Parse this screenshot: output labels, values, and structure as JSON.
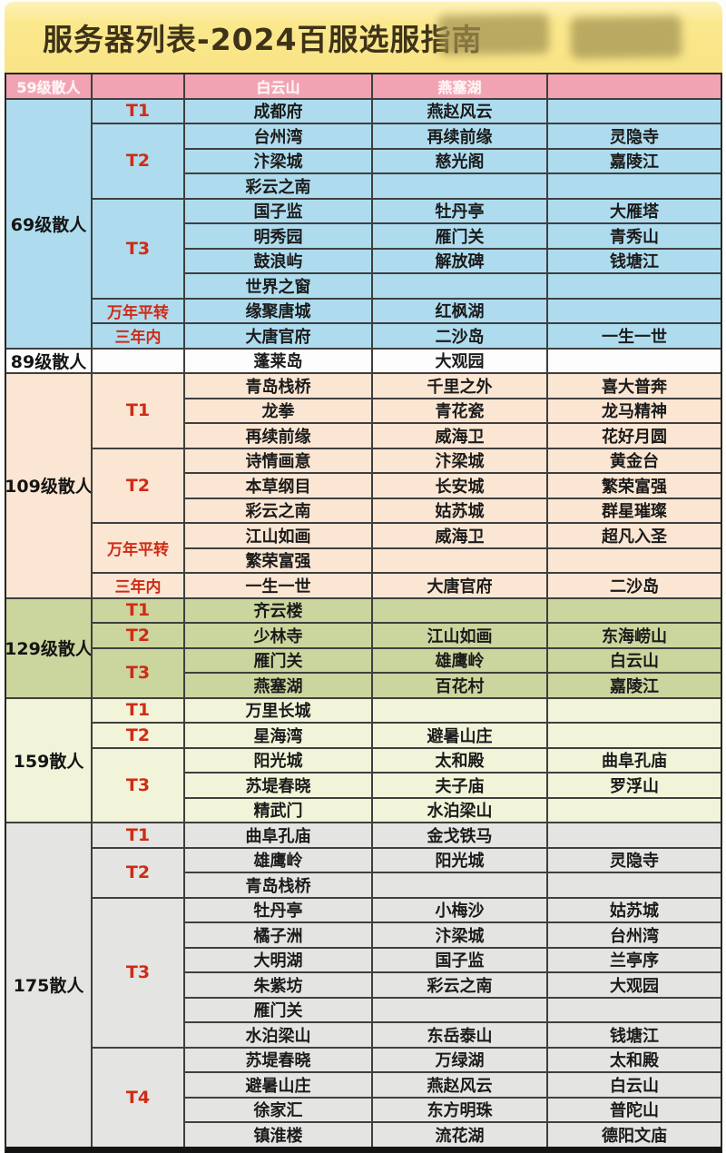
{
  "banner": {
    "title": "服务器列表-2024百服选服指南",
    "redacted_watermarks": 2,
    "bg_color": "#f9e689",
    "title_color": "#3e3318"
  },
  "palette": {
    "header_pink": "#f1a3b3",
    "grid_line": "#3f3f3f",
    "tier_red": "#cf2b16",
    "section_69": "#aedcee",
    "section_89": "#fdfdfd",
    "section_109": "#fae6d2",
    "section_129": "#cbd59e",
    "section_159": "#f1f4d9",
    "section_175": "#e4e4e2"
  },
  "table": {
    "header": {
      "cols": [
        "59级散人",
        "",
        "白云山",
        "燕塞湖",
        ""
      ]
    },
    "sections": [
      {
        "level": "69级散人",
        "bg": "#aedcee",
        "groups": [
          {
            "tier": "T1",
            "rows": [
              [
                "成都府",
                "燕赵风云",
                ""
              ]
            ]
          },
          {
            "tier": "T2",
            "rows": [
              [
                "台州湾",
                "再续前缘",
                "灵隐寺"
              ],
              [
                "汴梁城",
                "慈光阁",
                "嘉陵江"
              ],
              [
                "彩云之南",
                "",
                ""
              ]
            ]
          },
          {
            "tier": "T3",
            "rows": [
              [
                "国子监",
                "牡丹亭",
                "大雁塔"
              ],
              [
                "明秀园",
                "雁门关",
                "青秀山"
              ],
              [
                "鼓浪屿",
                "解放碑",
                "钱塘江"
              ],
              [
                "世界之窗",
                "",
                ""
              ]
            ]
          },
          {
            "tier": "万年平转",
            "rows": [
              [
                "缘聚唐城",
                "红枫湖",
                ""
              ]
            ]
          },
          {
            "tier": "三年内",
            "rows": [
              [
                "大唐官府",
                "二沙岛",
                "一生一世"
              ]
            ]
          }
        ]
      },
      {
        "level": "89级散人",
        "bg": "#fdfdfd",
        "groups": [
          {
            "tier": "",
            "rows": [
              [
                "蓬莱岛",
                "大观园",
                ""
              ]
            ]
          }
        ]
      },
      {
        "level": "109级散人",
        "bg": "#fae6d2",
        "groups": [
          {
            "tier": "T1",
            "rows": [
              [
                "青岛栈桥",
                "千里之外",
                "喜大普奔"
              ],
              [
                "龙拳",
                "青花瓷",
                "龙马精神"
              ],
              [
                "再续前缘",
                "威海卫",
                "花好月圆"
              ]
            ]
          },
          {
            "tier": "T2",
            "rows": [
              [
                "诗情画意",
                "汴梁城",
                "黄金台"
              ],
              [
                "本草纲目",
                "长安城",
                "繁荣富强"
              ],
              [
                "彩云之南",
                "姑苏城",
                "群星璀璨"
              ]
            ]
          },
          {
            "tier": "万年平转",
            "rows": [
              [
                "江山如画",
                "威海卫",
                "超凡入圣"
              ],
              [
                "繁荣富强",
                "",
                ""
              ]
            ]
          },
          {
            "tier": "三年内",
            "rows": [
              [
                "一生一世",
                "大唐官府",
                "二沙岛"
              ]
            ]
          }
        ]
      },
      {
        "level": "129级散人",
        "bg": "#cbd59e",
        "groups": [
          {
            "tier": "T1",
            "rows": [
              [
                "齐云楼",
                "",
                ""
              ]
            ]
          },
          {
            "tier": "T2",
            "rows": [
              [
                "少林寺",
                "江山如画",
                "东海崂山"
              ]
            ]
          },
          {
            "tier": "T3",
            "rows": [
              [
                "雁门关",
                "雄鹰岭",
                "白云山"
              ],
              [
                "燕塞湖",
                "百花村",
                "嘉陵江"
              ]
            ]
          }
        ]
      },
      {
        "level": "159散人",
        "bg": "#f1f4d9",
        "groups": [
          {
            "tier": "T1",
            "rows": [
              [
                "万里长城",
                "",
                ""
              ]
            ]
          },
          {
            "tier": "T2",
            "rows": [
              [
                "星海湾",
                "避暑山庄",
                ""
              ]
            ]
          },
          {
            "tier": "T3",
            "rows": [
              [
                "阳光城",
                "太和殿",
                "曲阜孔庙"
              ],
              [
                "苏堤春晓",
                "夫子庙",
                "罗浮山"
              ],
              [
                "精武门",
                "水泊梁山",
                ""
              ]
            ]
          }
        ]
      },
      {
        "level": "175散人",
        "bg": "#e4e4e2",
        "groups": [
          {
            "tier": "T1",
            "rows": [
              [
                "曲阜孔庙",
                "金戈铁马",
                ""
              ]
            ]
          },
          {
            "tier": "T2",
            "rows": [
              [
                "雄鹰岭",
                "阳光城",
                "灵隐寺"
              ],
              [
                "青岛栈桥",
                "",
                ""
              ]
            ]
          },
          {
            "tier": "T3",
            "rows": [
              [
                "牡丹亭",
                "小梅沙",
                "姑苏城"
              ],
              [
                "橘子洲",
                "汴梁城",
                "台州湾"
              ],
              [
                "大明湖",
                "国子监",
                "兰亭序"
              ],
              [
                "朱紫坊",
                "彩云之南",
                "大观园"
              ],
              [
                "雁门关",
                "",
                ""
              ],
              [
                "水泊梁山",
                "东岳泰山",
                "钱塘江"
              ]
            ]
          },
          {
            "tier": "T4",
            "rows": [
              [
                "苏堤春晓",
                "万绿湖",
                "太和殿"
              ],
              [
                "避暑山庄",
                "燕赵风云",
                "白云山"
              ],
              [
                "徐家汇",
                "东方明珠",
                "普陀山"
              ],
              [
                "镇淮楼",
                "流花湖",
                "德阳文庙"
              ]
            ]
          }
        ]
      }
    ]
  }
}
